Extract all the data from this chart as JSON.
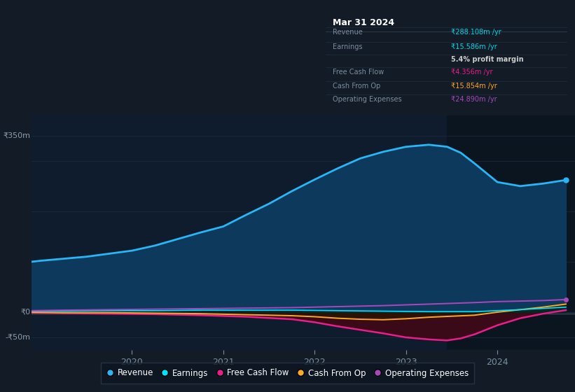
{
  "background_color": "#131b26",
  "plot_bg_color": "#0f1c2e",
  "info_box_color": "#0a0f18",
  "title": "Mar 31 2024",
  "table_rows": [
    {
      "label": "Revenue",
      "value": "₹288.108m /yr",
      "value_color": "#00d4e8"
    },
    {
      "label": "Earnings",
      "value": "₹15.586m /yr",
      "value_color": "#00d4e8"
    },
    {
      "label": "",
      "value": "5.4% profit margin",
      "value_color": "#cccccc",
      "bold": true
    },
    {
      "label": "Free Cash Flow",
      "value": "₹4.356m /yr",
      "value_color": "#e91e8c"
    },
    {
      "label": "Cash From Op",
      "value": "₹15.854m /yr",
      "value_color": "#ffa726"
    },
    {
      "label": "Operating Expenses",
      "value": "₹24.890m /yr",
      "value_color": "#ab47bc"
    }
  ],
  "ylabel_top": "₹350m",
  "ylabel_zero": "₹0",
  "ylabel_bottom": "-₹50m",
  "x_range": [
    2018.9,
    2024.85
  ],
  "y_range": [
    -75,
    390
  ],
  "y_zero": 0,
  "y_350": 350,
  "y_neg50": -50,
  "highlight_x_start": 2023.45,
  "revenue_x": [
    2018.9,
    2019.0,
    2019.25,
    2019.5,
    2019.75,
    2020.0,
    2020.25,
    2020.5,
    2020.75,
    2021.0,
    2021.25,
    2021.5,
    2021.75,
    2022.0,
    2022.25,
    2022.5,
    2022.75,
    2023.0,
    2023.25,
    2023.45,
    2023.6,
    2023.75,
    2024.0,
    2024.25,
    2024.5,
    2024.75
  ],
  "revenue_y": [
    100,
    102,
    106,
    110,
    116,
    122,
    132,
    145,
    158,
    170,
    193,
    215,
    240,
    263,
    285,
    305,
    318,
    328,
    332,
    328,
    316,
    295,
    258,
    250,
    255,
    262
  ],
  "earnings_x": [
    2018.9,
    2019.25,
    2019.75,
    2020.25,
    2020.75,
    2021.25,
    2021.75,
    2022.25,
    2022.75,
    2023.25,
    2023.75,
    2024.25,
    2024.75
  ],
  "earnings_y": [
    2,
    2,
    3,
    3,
    4,
    4,
    4,
    3,
    2,
    1,
    1,
    5,
    10
  ],
  "fcf_x": [
    2018.9,
    2019.25,
    2019.75,
    2020.25,
    2020.75,
    2021.25,
    2021.75,
    2022.0,
    2022.25,
    2022.5,
    2022.75,
    2023.0,
    2023.25,
    2023.45,
    2023.6,
    2023.75,
    2024.0,
    2024.25,
    2024.5,
    2024.75
  ],
  "fcf_y": [
    -1,
    -2,
    -3,
    -4,
    -6,
    -9,
    -14,
    -20,
    -28,
    -35,
    -42,
    -50,
    -54,
    -56,
    -52,
    -44,
    -26,
    -12,
    -3,
    4
  ],
  "cop_x": [
    2018.9,
    2019.25,
    2019.75,
    2020.25,
    2020.75,
    2021.25,
    2021.75,
    2022.0,
    2022.25,
    2022.5,
    2022.75,
    2023.0,
    2023.25,
    2023.75,
    2024.0,
    2024.25,
    2024.5,
    2024.75
  ],
  "cop_y": [
    0,
    -1,
    -1,
    -2,
    -3,
    -5,
    -7,
    -9,
    -12,
    -14,
    -15,
    -13,
    -10,
    -6,
    0,
    5,
    10,
    16
  ],
  "opex_x": [
    2018.9,
    2019.25,
    2019.75,
    2020.25,
    2020.75,
    2021.25,
    2021.75,
    2022.25,
    2022.75,
    2023.25,
    2023.75,
    2024.0,
    2024.25,
    2024.5,
    2024.75
  ],
  "opex_y": [
    3,
    4,
    5,
    6,
    7,
    8,
    9,
    11,
    13,
    16,
    19,
    21,
    22,
    23,
    25
  ],
  "gray_line_x": [
    2018.9,
    2024.85
  ],
  "gray_line_y": [
    -3,
    -3
  ],
  "revenue_color": "#29b6f6",
  "revenue_fill": "#0d3a5c",
  "earnings_color": "#00e5ff",
  "earnings_fill": "#002a2a",
  "fcf_color": "#e91e8c",
  "fcf_fill": "#3a0a18",
  "cop_color": "#ffa726",
  "cop_fill": "#2a1500",
  "opex_color": "#ab47bc",
  "grid_color": "#1a2e40",
  "tick_color": "#7a8fa0",
  "label_color": "#8a9fb0",
  "highlight_color": "#0a1520",
  "legend": [
    {
      "label": "Revenue",
      "color": "#29b6f6"
    },
    {
      "label": "Earnings",
      "color": "#00e5ff"
    },
    {
      "label": "Free Cash Flow",
      "color": "#e91e8c"
    },
    {
      "label": "Cash From Op",
      "color": "#ffa726"
    },
    {
      "label": "Operating Expenses",
      "color": "#ab47bc"
    }
  ]
}
